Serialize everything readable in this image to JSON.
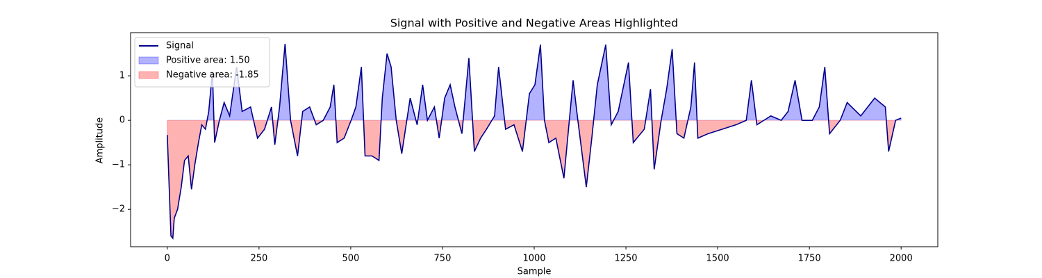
{
  "chart_data": {
    "type": "line",
    "title": "Signal with Positive and Negative Areas Highlighted",
    "xlabel": "Sample",
    "ylabel": "Amplitude",
    "x": [
      0,
      10,
      15,
      19,
      28,
      38,
      47,
      57,
      66,
      75,
      85,
      94,
      104,
      113,
      123,
      129,
      142,
      155,
      170,
      189,
      204,
      227,
      246,
      265,
      284,
      293,
      306,
      321,
      336,
      355,
      369,
      388,
      406,
      425,
      444,
      454,
      463,
      482,
      501,
      514,
      529,
      539,
      558,
      577,
      586,
      599,
      610,
      624,
      639,
      662,
      681,
      696,
      709,
      728,
      741,
      756,
      771,
      784,
      803,
      822,
      837,
      854,
      870,
      892,
      903,
      922,
      945,
      968,
      987,
      1002,
      1017,
      1028,
      1040,
      1059,
      1081,
      1106,
      1119,
      1142,
      1157,
      1172,
      1195,
      1210,
      1229,
      1257,
      1270,
      1300,
      1317,
      1327,
      1346,
      1361,
      1376,
      1389,
      1408,
      1427,
      1437,
      1446,
      1474,
      1512,
      1550,
      1578,
      1592,
      1607,
      1645,
      1673,
      1692,
      1711,
      1730,
      1758,
      1777,
      1792,
      1805,
      1834,
      1853,
      1890,
      1928,
      1957,
      1966,
      1985,
      2000
    ],
    "series": [
      {
        "name": "Signal",
        "color": "#00008b",
        "values": [
          -0.33,
          -2.6,
          -2.65,
          -2.2,
          -2.0,
          -1.5,
          -0.9,
          -0.8,
          -1.55,
          -1.0,
          -0.5,
          -0.1,
          -0.2,
          0.2,
          1.1,
          -0.5,
          0.0,
          0.4,
          0.1,
          1.2,
          0.2,
          0.3,
          -0.4,
          -0.2,
          0.3,
          -0.55,
          0.3,
          1.72,
          0.0,
          -0.8,
          0.2,
          0.3,
          -0.1,
          0.0,
          0.3,
          0.8,
          -0.5,
          -0.4,
          0.0,
          0.3,
          1.2,
          -0.8,
          -0.8,
          -0.9,
          0.5,
          1.5,
          1.2,
          0.0,
          -0.75,
          0.5,
          -0.1,
          0.8,
          0.0,
          0.3,
          -0.4,
          0.5,
          0.8,
          0.3,
          -0.3,
          1.4,
          -0.7,
          -0.4,
          -0.2,
          0.1,
          1.2,
          -0.2,
          -0.1,
          -0.7,
          0.6,
          0.8,
          1.7,
          0.0,
          -0.5,
          -0.4,
          -1.3,
          0.9,
          0.0,
          -1.5,
          -0.4,
          0.8,
          1.7,
          -0.1,
          0.2,
          1.3,
          -0.5,
          -0.2,
          0.7,
          -1.1,
          0.0,
          0.7,
          1.6,
          -0.3,
          -0.4,
          0.3,
          1.3,
          -0.4,
          -0.3,
          -0.2,
          -0.1,
          0.0,
          0.9,
          -0.1,
          0.1,
          0.0,
          0.2,
          0.9,
          0.0,
          0.0,
          0.3,
          1.2,
          -0.3,
          0.0,
          0.4,
          0.1,
          0.5,
          0.3,
          -0.7,
          0.0,
          0.05
        ]
      }
    ],
    "fills": [
      {
        "name": "Positive area: 1.50",
        "color": "#0000ff",
        "alpha": 0.3,
        "where": "above"
      },
      {
        "name": "Negative area: -1.85",
        "color": "#ff0000",
        "alpha": 0.3,
        "where": "below"
      }
    ],
    "xlim": [
      -100,
      2100
    ],
    "ylim": [
      -2.84,
      1.97
    ],
    "xticks": [
      0,
      250,
      500,
      750,
      1000,
      1250,
      1500,
      1750,
      2000
    ],
    "yticks": [
      {
        "value": -2,
        "label": "−2"
      },
      {
        "value": -1,
        "label": "−1"
      },
      0,
      1
    ],
    "legend": "upper left",
    "grid": false
  }
}
